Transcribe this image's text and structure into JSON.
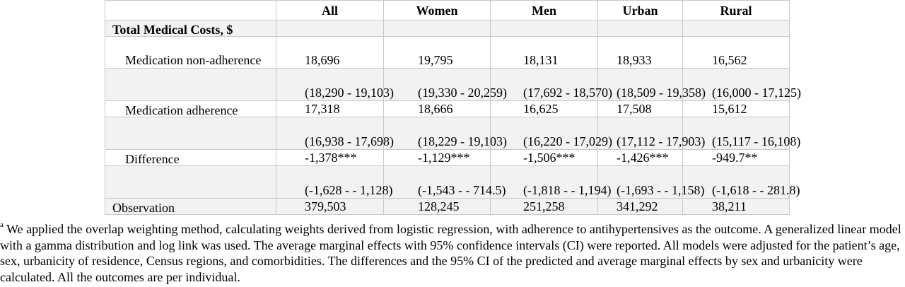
{
  "table": {
    "columns": [
      "All",
      "Women",
      "Men",
      "Urban",
      "Rural"
    ],
    "section_title": "Total Medical Costs, $",
    "rows": [
      {
        "label": "Medication non-adherence",
        "estimates": [
          "18,696",
          "19,795",
          "18,131",
          "18,933",
          "16,562"
        ],
        "ci": [
          "(18,290 - 19,103)",
          "(19,330 - 20,259)",
          "(17,692 - 18,570)",
          "(18,509 - 19,358)",
          "(16,000 - 17,125)"
        ]
      },
      {
        "label": "Medication adherence",
        "estimates": [
          "17,318",
          "18,666",
          "16,625",
          "17,508",
          "15,612"
        ],
        "ci": [
          "(16,938 - 17,698)",
          "(18,229 - 19,103)",
          "(16,220 - 17,029)",
          "(17,112 - 17,903)",
          "(15,117 - 16,108)"
        ]
      },
      {
        "label": "Difference",
        "estimates": [
          "-1,378***",
          "-1,129***",
          "-1,506***",
          "-1,426***",
          "-949.7**"
        ],
        "ci": [
          "(-1,628 - - 1,128)",
          "(-1,543 - - 714.5)",
          "(-1,818 - - 1,194)",
          "(-1,693 - - 1,158)",
          "(-1,618 - - 281.8)"
        ]
      }
    ],
    "observation": {
      "label": "Observation",
      "values": [
        "379,503",
        "128,245",
        "251,258",
        "341,292",
        "38,211"
      ]
    }
  },
  "footnote": {
    "marker": "a",
    "text": " We applied the overlap weighting method, calculating weights derived from logistic regression, with adherence to antihypertensives as the outcome. A generalized linear model with a gamma distribution and log link was used. The average marginal effects with 95% confidence intervals (CI) were reported. All models were adjusted for the patient’s age, sex, urbanicity of residence, Census regions, and comorbidities. The differences and the 95% CI of the predicted and average marginal effects by sex and urbanicity were calculated. All the outcomes are per individual."
  }
}
